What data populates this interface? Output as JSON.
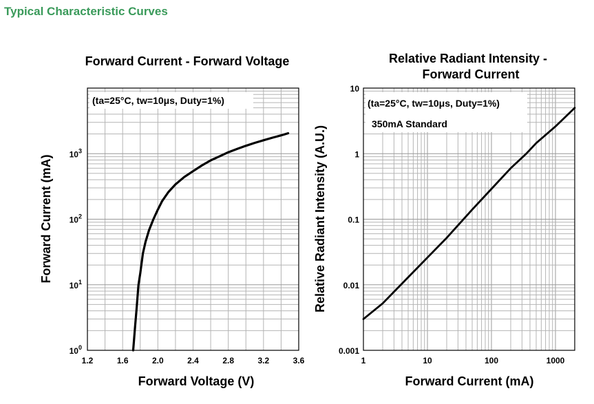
{
  "page": {
    "title": "Typical Characteristic Curves",
    "accent_color": "#3a9a5a"
  },
  "chart_data": [
    {
      "type": "line",
      "title": "Forward Current - Forward Voltage",
      "annotation": "(ta=25°C, tw=10μs, Duty=1%)",
      "xlabel": "Forward Voltage (V)",
      "ylabel": "Forward Current (mA)",
      "xlim": [
        1.2,
        3.6
      ],
      "ylim": [
        1,
        10000
      ],
      "yscale": "log",
      "xticks": [
        "1.2",
        "1.6",
        "2.0",
        "2.4",
        "2.8",
        "3.2",
        "3.6"
      ],
      "yticks": [
        {
          "base": "10",
          "exp": "0"
        },
        {
          "base": "10",
          "exp": "1"
        },
        {
          "base": "10",
          "exp": "2"
        },
        {
          "base": "10",
          "exp": "3"
        }
      ],
      "grid": true,
      "series": [
        {
          "x": [
            1.72,
            1.74,
            1.76,
            1.78,
            1.8,
            1.83,
            1.86,
            1.9,
            1.95,
            2.0,
            2.05,
            2.12,
            2.2,
            2.3,
            2.4,
            2.5,
            2.6,
            2.7,
            2.8,
            2.9,
            3.0,
            3.1,
            3.2,
            3.3,
            3.4,
            3.48
          ],
          "y": [
            1,
            2.2,
            4.5,
            10,
            15,
            30,
            45,
            68,
            100,
            140,
            190,
            260,
            340,
            440,
            540,
            660,
            790,
            910,
            1050,
            1180,
            1320,
            1460,
            1600,
            1750,
            1900,
            2050
          ]
        }
      ]
    },
    {
      "type": "line",
      "title": [
        "Relative Radiant Intensity -",
        "Forward Current"
      ],
      "annotation": [
        "(ta=25°C, tw=10μs, Duty=1%)",
        "350mA Standard"
      ],
      "xlabel": "Forward Current (mA)",
      "ylabel": "Relative Radiant Intensity (A.U.)",
      "xlim": [
        1,
        2000
      ],
      "ylim": [
        0.001,
        10
      ],
      "xscale": "log",
      "yscale": "log",
      "xticks": [
        "1",
        "10",
        "100",
        "1000"
      ],
      "yticks": [
        "0.001",
        "0.01",
        "0.1",
        "1",
        "10"
      ],
      "grid": true,
      "series": [
        {
          "x": [
            1,
            2,
            3,
            5,
            10,
            20,
            50,
            100,
            200,
            350,
            500,
            1000,
            2000
          ],
          "y": [
            0.003,
            0.0052,
            0.0078,
            0.013,
            0.026,
            0.052,
            0.14,
            0.29,
            0.6,
            1.0,
            1.45,
            2.6,
            5.0
          ]
        }
      ]
    }
  ]
}
